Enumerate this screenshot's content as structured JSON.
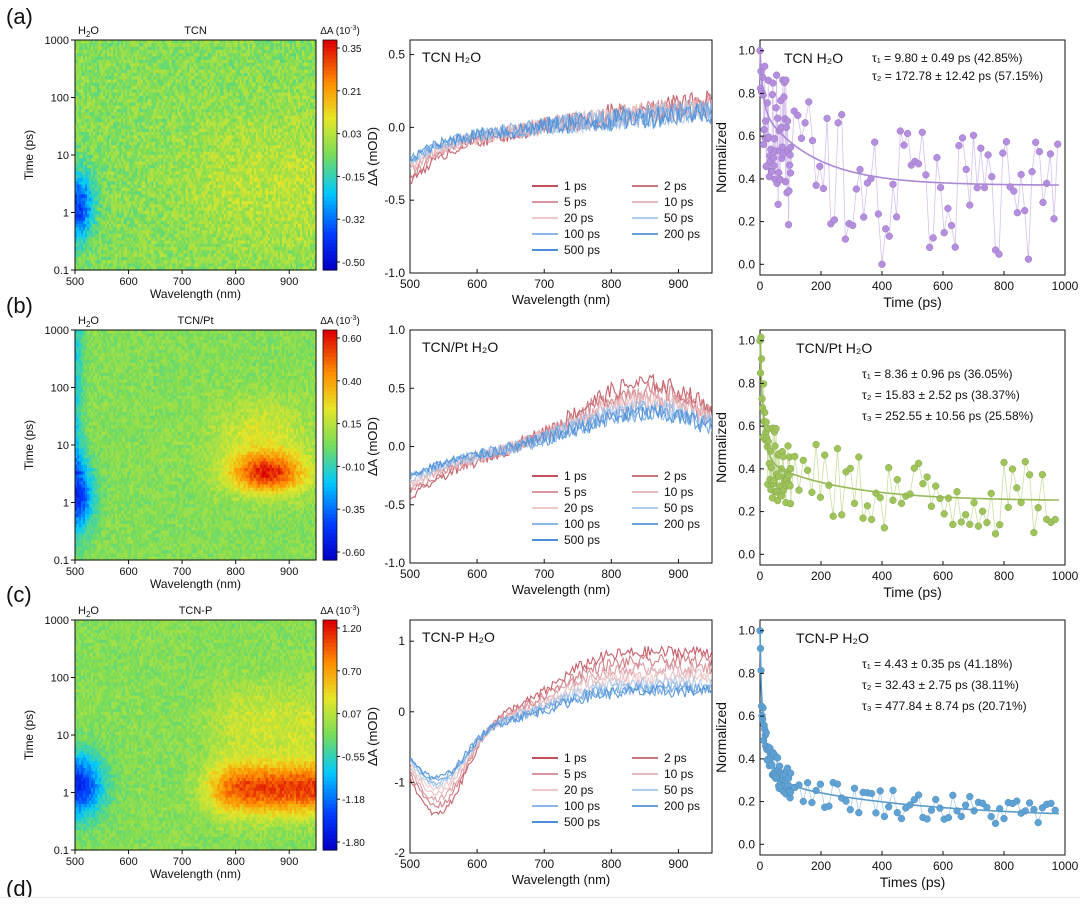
{
  "panel_labels": [
    "(a)",
    "(b)",
    "(c)",
    "(d)"
  ],
  "chart_data": [
    {
      "type": "heatmap",
      "row": 0,
      "title": "TCN",
      "corner": "H2O",
      "cbar_title": "ΔA (10⁻³)",
      "xlabel": "Wavelength (nm)",
      "ylabel": "Time (ps)",
      "xlim": [
        500,
        950
      ],
      "ylim": [
        0.1,
        1000
      ],
      "yscale": "log",
      "xticks": [
        "500",
        "600",
        "700",
        "800",
        "900"
      ],
      "yticks": [
        "0.1",
        "1",
        "10",
        "100",
        "1000"
      ],
      "cbar_ticks": [
        "0.35",
        "0.21",
        "0.03",
        "-0.15",
        "-0.32",
        "-0.50"
      ]
    },
    {
      "type": "line",
      "row": 0,
      "title": "TCN  H₂O",
      "xlabel": "Wavelength (nm)",
      "ylabel": "ΔA (mOD)",
      "xlim": [
        500,
        950
      ],
      "ylim": [
        -1.0,
        0.6
      ],
      "xticks": [
        "500",
        "600",
        "700",
        "800",
        "900"
      ],
      "yticks": [
        "0.5",
        "0.0",
        "-0.5",
        "-1.0"
      ],
      "legend": [
        "1 ps",
        "2 ps",
        "5 ps",
        "10 ps",
        "20 ps",
        "50 ps",
        "100 ps",
        "200 ps",
        "500 ps"
      ],
      "series_amp": {
        "short": -0.38,
        "long": 0.18
      }
    },
    {
      "type": "scatter",
      "row": 0,
      "title": "TCN   H₂O",
      "xlabel": "Time (ps)",
      "ylabel": "Normalized",
      "xlim": [
        0,
        1000
      ],
      "ylim": [
        0,
        1.05
      ],
      "xticks": [
        "0",
        "200",
        "400",
        "600",
        "800",
        "1000"
      ],
      "yticks": [
        "1.0",
        "0.8",
        "0.6",
        "0.4",
        "0.2",
        "0.0"
      ],
      "fit_lines": [
        "τ₁ = 9.80  ± 0.49 ps (42.85%)",
        "τ₂ = 172.78 ± 12.42 ps (57.15%)"
      ],
      "fit": {
        "taus": [
          9.8,
          172.78
        ],
        "weights": [
          0.4285,
          0.5715
        ],
        "offset": 0.37
      },
      "color": "#b58ee0"
    },
    {
      "type": "heatmap",
      "row": 1,
      "title": "TCN/Pt",
      "corner": "H2O",
      "cbar_title": "ΔA (10⁻³)",
      "xlabel": "Wavelength (nm)",
      "ylabel": "Time (ps)",
      "xlim": [
        500,
        950
      ],
      "ylim": [
        0.1,
        1000
      ],
      "yscale": "log",
      "xticks": [
        "500",
        "600",
        "700",
        "800",
        "900"
      ],
      "yticks": [
        "0.1",
        "1",
        "10",
        "100",
        "1000"
      ],
      "cbar_ticks": [
        "0.60",
        "0.40",
        "0.15",
        "-0.10",
        "-0.35",
        "-0.60"
      ]
    },
    {
      "type": "line",
      "row": 1,
      "title": "TCN/Pt  H₂O",
      "xlabel": "Wavelength (nm)",
      "ylabel": "ΔA (mOD)",
      "xlim": [
        500,
        950
      ],
      "ylim": [
        -1.0,
        1.0
      ],
      "xticks": [
        "500",
        "600",
        "700",
        "800",
        "900"
      ],
      "yticks": [
        "1.0",
        "0.5",
        "0.0",
        "-0.5",
        "-1.0"
      ],
      "legend": [
        "1 ps",
        "2 ps",
        "5 ps",
        "10 ps",
        "20 ps",
        "50 ps",
        "100 ps",
        "200 ps",
        "500 ps"
      ],
      "series_amp": {
        "short": -0.45,
        "long": 0.55
      }
    },
    {
      "type": "scatter",
      "row": 1,
      "title": "TCN/Pt   H₂O",
      "xlabel": "Time (ps)",
      "ylabel": "Normalized",
      "xlim": [
        0,
        1000
      ],
      "ylim": [
        0,
        1.05
      ],
      "xticks": [
        "0",
        "200",
        "400",
        "600",
        "800",
        "1000"
      ],
      "yticks": [
        "1.0",
        "0.8",
        "0.6",
        "0.4",
        "0.2",
        "0.0"
      ],
      "fit_lines": [
        "τ₁ = 8.36 ± 0.96 ps (36.05%)",
        "τ₂ = 15.83 ± 2.52 ps (38.37%)",
        "τ₃ = 252.55 ± 10.56 ps (25.58%)"
      ],
      "fit": {
        "taus": [
          8.36,
          15.83,
          252.55
        ],
        "weights": [
          0.3605,
          0.3837,
          0.2558
        ],
        "offset": 0.25
      },
      "color": "#9ec45a"
    },
    {
      "type": "heatmap",
      "row": 2,
      "title": "TCN-P",
      "corner": "H2O",
      "cbar_title": "ΔA (10⁻³)",
      "xlabel": "Wavelength (nm)",
      "ylabel": "Time (ps)",
      "xlim": [
        500,
        950
      ],
      "ylim": [
        0.1,
        1000
      ],
      "yscale": "log",
      "xticks": [
        "500",
        "600",
        "700",
        "800",
        "900"
      ],
      "yticks": [
        "0.1",
        "1",
        "10",
        "100",
        "1000"
      ],
      "cbar_ticks": [
        "1.20",
        "0.70",
        "0.07",
        "-0.55",
        "-1.18",
        "-1.80"
      ]
    },
    {
      "type": "line",
      "row": 2,
      "title": "TCN-P  H₂O",
      "xlabel": "Wavelength (nm)",
      "ylabel": "ΔA (mOD)",
      "xlim": [
        500,
        950
      ],
      "ylim": [
        -2.0,
        1.3
      ],
      "xticks": [
        "500",
        "600",
        "700",
        "800",
        "900"
      ],
      "yticks": [
        "1",
        "0",
        "-1",
        "-2"
      ],
      "legend": [
        "1 ps",
        "2 ps",
        "5 ps",
        "10 ps",
        "20 ps",
        "50 ps",
        "100 ps",
        "200 ps",
        "500 ps"
      ],
      "series_amp": {
        "short": -1.45,
        "long": 0.85
      }
    },
    {
      "type": "scatter",
      "row": 2,
      "title": "TCN-P   H₂O",
      "xlabel": "Times (ps)",
      "ylabel": "Normalized",
      "xlim": [
        0,
        1000
      ],
      "ylim": [
        0,
        1.05
      ],
      "xticks": [
        "0",
        "200",
        "400",
        "600",
        "800",
        "1000"
      ],
      "yticks": [
        "1.0",
        "0.8",
        "0.6",
        "0.4",
        "0.2",
        "0.0"
      ],
      "fit_lines": [
        "τ₁ = 4.43 ± 0.35 ps (41.18%)",
        "τ₂ = 32.43 ± 2.75 ps (38.11%)",
        "τ₃ = 477.84 ± 8.74 ps (20.71%)"
      ],
      "fit": {
        "taus": [
          4.43,
          32.43,
          477.84
        ],
        "weights": [
          0.4118,
          0.3811,
          0.2071
        ],
        "offset": 0.12
      },
      "color": "#5fa3d6"
    }
  ],
  "colors": {
    "short_delay": "#c0505a",
    "long_delay": "#4a8fd8"
  }
}
